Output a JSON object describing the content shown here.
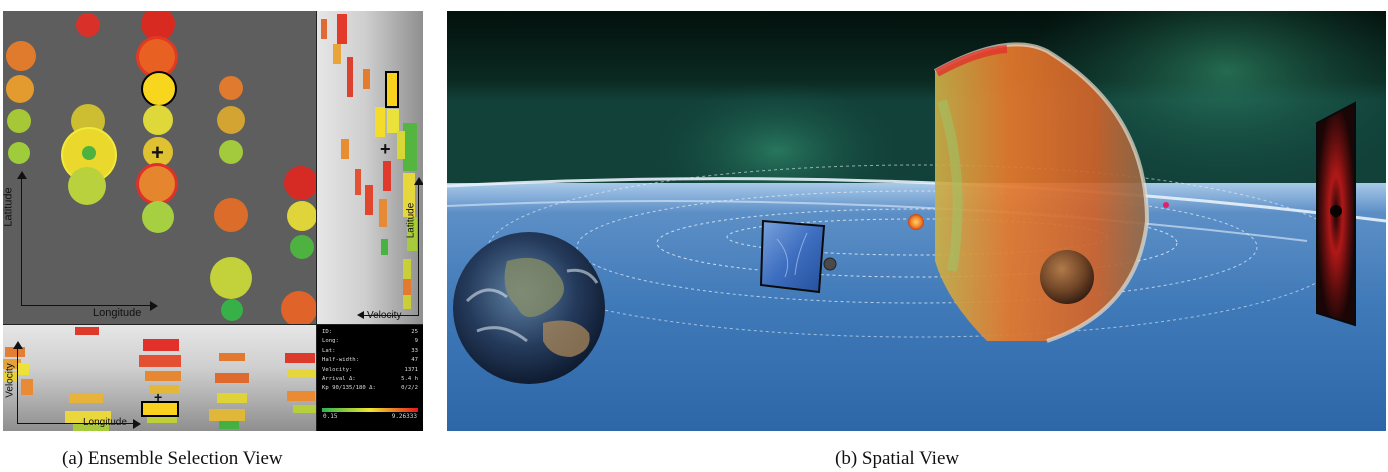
{
  "ensemble": {
    "caption": "(a)  Ensemble Selection View",
    "lat_lon_view": {
      "xlabel": "Longitude",
      "ylabel": "Latitude",
      "cursor_glyph": "+"
    },
    "lat_vel_view": {
      "xlabel": "Velocity",
      "ylabel": "Latitude",
      "cursor_glyph": "+"
    },
    "lon_vel_view": {
      "xlabel": "Longitude",
      "ylabel": "Velocity",
      "cursor_glyph": "+"
    },
    "info": {
      "rows": [
        {
          "key": "ID:",
          "value": "25"
        },
        {
          "key": "Long:",
          "value": "9"
        },
        {
          "key": "Lat:",
          "value": "33"
        },
        {
          "key": "Half-width:",
          "value": "47"
        },
        {
          "key": "Velocity:",
          "value": "1371"
        },
        {
          "key": "Arrival Δ:",
          "value": "5.4 h"
        },
        {
          "key": "Kp 90/135/180 Δ:",
          "value": "0/2/2"
        }
      ],
      "scale_min": "0.15",
      "scale_max": "9.26333",
      "scale_colors": [
        "#2bb24c",
        "#f0e431",
        "#e01b1b"
      ]
    },
    "ensemble_colors": {
      "good": "#3fbb46",
      "mid": "#f0d62a",
      "poor": "#e01f1c",
      "selected_outline": "#000000"
    }
  },
  "spatial": {
    "caption": "(b)  Spatial View",
    "objects": [
      "Earth",
      "Sun",
      "Mars",
      "Mercury",
      "CME front",
      "image plane (left)",
      "image plane (right)",
      "heliospheric current sheet"
    ]
  }
}
